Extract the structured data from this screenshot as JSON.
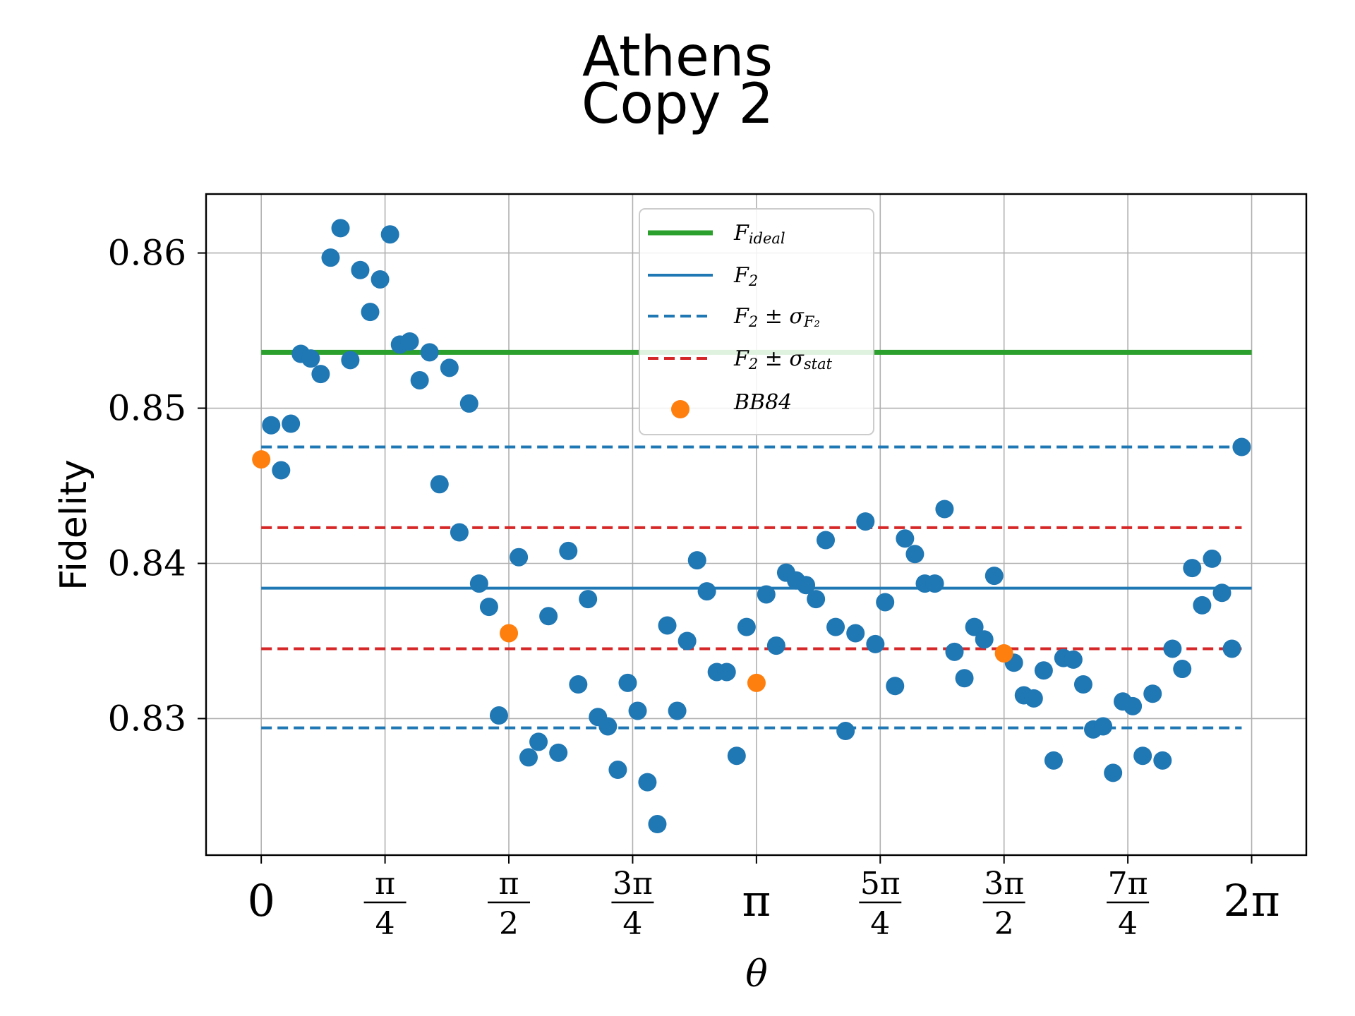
{
  "chart_data": {
    "type": "scatter",
    "title_lines": [
      "Athens",
      "Copy 2"
    ],
    "xlabel": "θ",
    "ylabel": "Fidelity",
    "xlim": [
      -0.35,
      6.63
    ],
    "ylim": [
      0.8212,
      0.8638
    ],
    "grid": true,
    "legend_position": "top-center",
    "x_ticks": [
      {
        "value": 0,
        "label": "0"
      },
      {
        "value": 0.785398,
        "num": "π",
        "den": "4"
      },
      {
        "value": 1.570796,
        "num": "π",
        "den": "2"
      },
      {
        "value": 2.356194,
        "num": "3π",
        "den": "4"
      },
      {
        "value": 3.141593,
        "label": "π"
      },
      {
        "value": 3.926991,
        "num": "5π",
        "den": "4"
      },
      {
        "value": 4.712389,
        "num": "3π",
        "den": "2"
      },
      {
        "value": 5.497787,
        "num": "7π",
        "den": "4"
      },
      {
        "value": 6.283185,
        "label": "2π"
      }
    ],
    "y_ticks": [
      {
        "value": 0.83,
        "label": "0.83"
      },
      {
        "value": 0.84,
        "label": "0.84"
      },
      {
        "value": 0.85,
        "label": "0.85"
      },
      {
        "value": 0.86,
        "label": "0.86"
      }
    ],
    "reference_lines": [
      {
        "key": "f-ideal",
        "y": 0.8536,
        "x_range": [
          0,
          6.283185
        ],
        "color": "#2ca02c",
        "style": "solid",
        "width": 7
      },
      {
        "key": "f2",
        "y": 0.8384,
        "x_range": [
          0,
          6.283185
        ],
        "color": "#1f77b4",
        "style": "solid",
        "width": 4
      },
      {
        "key": "f2-plus-sigma-f2",
        "y": 0.8475,
        "x_range": [
          0,
          6.22
        ],
        "color": "#1f77b4",
        "style": "dashed",
        "width": 4
      },
      {
        "key": "f2-minus-sigma-f2",
        "y": 0.8294,
        "x_range": [
          0,
          6.22
        ],
        "color": "#1f77b4",
        "style": "dashed",
        "width": 4
      },
      {
        "key": "f2-plus-sigma-stat",
        "y": 0.8423,
        "x_range": [
          0,
          6.22
        ],
        "color": "#d62728",
        "style": "dashed",
        "width": 4
      },
      {
        "key": "f2-minus-sigma-stat",
        "y": 0.8345,
        "x_range": [
          0,
          6.22
        ],
        "color": "#d62728",
        "style": "dashed",
        "width": 4
      }
    ],
    "legend": [
      {
        "key": "f-ideal",
        "base": "F",
        "sub": "ideal",
        "tail": "",
        "tail_sub": ""
      },
      {
        "key": "f2",
        "base": "F",
        "sub": "2",
        "tail": "",
        "tail_sub": ""
      },
      {
        "key": "f2-pm-sigma-f2",
        "base": "F",
        "sub": "2",
        "tail": " ± σ",
        "tail_sub": "F₂"
      },
      {
        "key": "f2-pm-sigma-stat",
        "base": "F",
        "sub": "2",
        "tail": " ± σ",
        "tail_sub": "stat"
      },
      {
        "key": "bb84",
        "base": "BB84",
        "sub": "",
        "tail": "",
        "tail_sub": ""
      }
    ],
    "series": [
      {
        "name": "F₂",
        "color": "#1f77b4",
        "points": [
          [
            0.063,
            0.8489
          ],
          [
            0.126,
            0.846
          ],
          [
            0.188,
            0.849
          ],
          [
            0.251,
            0.8535
          ],
          [
            0.314,
            0.8532
          ],
          [
            0.377,
            0.8522
          ],
          [
            0.44,
            0.8597
          ],
          [
            0.503,
            0.8616
          ],
          [
            0.565,
            0.8531
          ],
          [
            0.628,
            0.8589
          ],
          [
            0.691,
            0.8562
          ],
          [
            0.754,
            0.8583
          ],
          [
            0.817,
            0.8612
          ],
          [
            0.88,
            0.8541
          ],
          [
            0.942,
            0.8543
          ],
          [
            1.005,
            0.8518
          ],
          [
            1.068,
            0.8536
          ],
          [
            1.131,
            0.8451
          ],
          [
            1.194,
            0.8526
          ],
          [
            1.257,
            0.842
          ],
          [
            1.319,
            0.8503
          ],
          [
            1.382,
            0.8387
          ],
          [
            1.445,
            0.8372
          ],
          [
            1.508,
            0.8302
          ],
          [
            1.634,
            0.8404
          ],
          [
            1.696,
            0.8275
          ],
          [
            1.759,
            0.8285
          ],
          [
            1.822,
            0.8366
          ],
          [
            1.885,
            0.8278
          ],
          [
            1.948,
            0.8408
          ],
          [
            2.011,
            0.8322
          ],
          [
            2.073,
            0.8377
          ],
          [
            2.136,
            0.8301
          ],
          [
            2.199,
            0.8295
          ],
          [
            2.262,
            0.8267
          ],
          [
            2.325,
            0.8323
          ],
          [
            2.388,
            0.8305
          ],
          [
            2.45,
            0.8259
          ],
          [
            2.513,
            0.8232
          ],
          [
            2.576,
            0.836
          ],
          [
            2.639,
            0.8305
          ],
          [
            2.702,
            0.835
          ],
          [
            2.765,
            0.8402
          ],
          [
            2.827,
            0.8382
          ],
          [
            2.89,
            0.833
          ],
          [
            2.953,
            0.833
          ],
          [
            3.016,
            0.8276
          ],
          [
            3.079,
            0.8359
          ],
          [
            3.204,
            0.838
          ],
          [
            3.267,
            0.8347
          ],
          [
            3.33,
            0.8394
          ],
          [
            3.393,
            0.8389
          ],
          [
            3.456,
            0.8386
          ],
          [
            3.519,
            0.8377
          ],
          [
            3.581,
            0.8415
          ],
          [
            3.644,
            0.8359
          ],
          [
            3.707,
            0.8292
          ],
          [
            3.77,
            0.8355
          ],
          [
            3.833,
            0.8427
          ],
          [
            3.896,
            0.8348
          ],
          [
            3.958,
            0.8375
          ],
          [
            4.021,
            0.8321
          ],
          [
            4.084,
            0.8416
          ],
          [
            4.147,
            0.8406
          ],
          [
            4.21,
            0.8387
          ],
          [
            4.273,
            0.8387
          ],
          [
            4.335,
            0.8435
          ],
          [
            4.398,
            0.8343
          ],
          [
            4.461,
            0.8326
          ],
          [
            4.524,
            0.8359
          ],
          [
            4.587,
            0.8351
          ],
          [
            4.65,
            0.8392
          ],
          [
            4.775,
            0.8336
          ],
          [
            4.838,
            0.8315
          ],
          [
            4.901,
            0.8313
          ],
          [
            4.964,
            0.8331
          ],
          [
            5.027,
            0.8273
          ],
          [
            5.089,
            0.8339
          ],
          [
            5.152,
            0.8338
          ],
          [
            5.215,
            0.8322
          ],
          [
            5.278,
            0.8293
          ],
          [
            5.341,
            0.8295
          ],
          [
            5.404,
            0.8265
          ],
          [
            5.466,
            0.8311
          ],
          [
            5.529,
            0.8308
          ],
          [
            5.592,
            0.8276
          ],
          [
            5.655,
            0.8316
          ],
          [
            5.718,
            0.8273
          ],
          [
            5.781,
            0.8345
          ],
          [
            5.843,
            0.8332
          ],
          [
            5.906,
            0.8397
          ],
          [
            5.969,
            0.8373
          ],
          [
            6.032,
            0.8403
          ],
          [
            6.095,
            0.8381
          ],
          [
            6.158,
            0.8345
          ],
          [
            6.22,
            0.8475
          ]
        ]
      },
      {
        "name": "BB84",
        "color": "#ff7f0e",
        "points": [
          [
            0.0,
            0.8467
          ],
          [
            1.571,
            0.8355
          ],
          [
            3.142,
            0.8323
          ],
          [
            4.712,
            0.8342
          ]
        ]
      }
    ]
  }
}
